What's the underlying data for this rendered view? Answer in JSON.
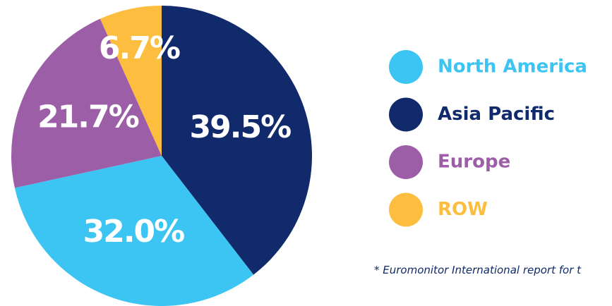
{
  "chart_data": {
    "type": "pie",
    "categories": [
      "North America",
      "Asia Pacific",
      "Europe",
      "ROW"
    ],
    "values": [
      32.0,
      39.5,
      21.7,
      6.7
    ],
    "value_labels": [
      "32.0%",
      "39.5%",
      "21.7%",
      "6.7%"
    ],
    "colors": [
      "#3cc5f3",
      "#112a6c",
      "#9c5ea7",
      "#fdbd3f"
    ],
    "footnote": "* Euromonitor International report for t"
  }
}
